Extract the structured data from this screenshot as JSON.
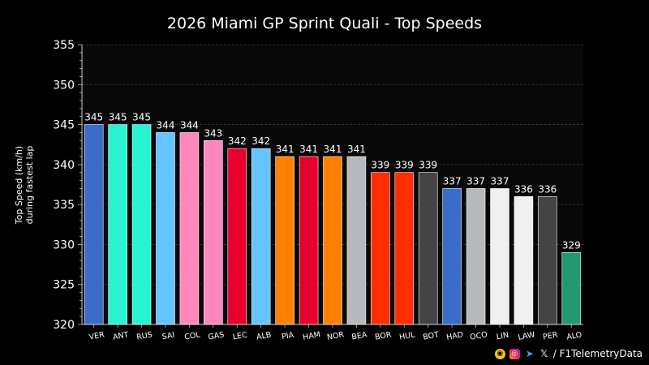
{
  "footer": {
    "handle": "/ F1TelemetryData",
    "icons": [
      "patreon-icon",
      "instagram-icon",
      "telegram-icon",
      "x-icon"
    ]
  },
  "chart_data": {
    "type": "bar",
    "title": "2026 Miami GP Sprint Quali - Top Speeds",
    "ylabel": [
      "Top Speed (km/h)",
      "during fastest lap"
    ],
    "xlabel": "",
    "ylim": [
      320,
      355
    ],
    "yticks": [
      320,
      325,
      330,
      335,
      340,
      345,
      350,
      355
    ],
    "grid": true,
    "categories": [
      "VER",
      "ANT",
      "RUS",
      "SAI",
      "COL",
      "GAS",
      "LEC",
      "ALB",
      "PIA",
      "HAM",
      "NOR",
      "BEA",
      "BOR",
      "HUL",
      "BOT",
      "HAD",
      "OCO",
      "LIN",
      "LAW",
      "PER",
      "ALO"
    ],
    "values": [
      345,
      345,
      345,
      344,
      344,
      343,
      342,
      342,
      341,
      341,
      341,
      341,
      339,
      339,
      339,
      337,
      337,
      337,
      336,
      336,
      329
    ],
    "colors": [
      "#3a6cc8",
      "#27f4d2",
      "#27f4d2",
      "#64c4ff",
      "#ff87bc",
      "#ff87bc",
      "#e8002d",
      "#64c4ff",
      "#ff8000",
      "#e8002d",
      "#ff8000",
      "#b6babd",
      "#ff2d00",
      "#ff2d00",
      "#444444",
      "#3a6cc8",
      "#b6babd",
      "#f0f0f0",
      "#f0f0f0",
      "#444444",
      "#229971"
    ],
    "background": "#000000",
    "plot_background": "#080808"
  }
}
